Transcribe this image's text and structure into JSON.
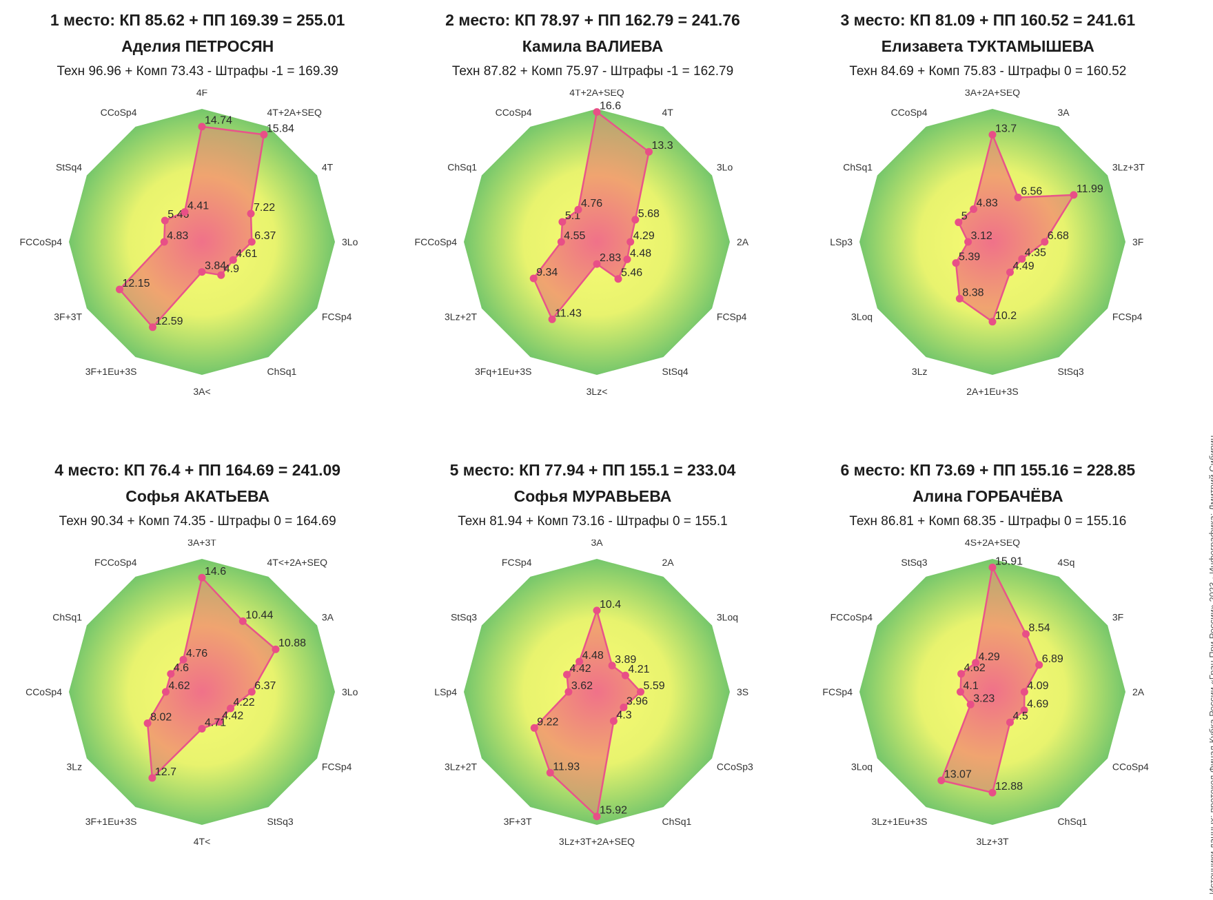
{
  "colors": {
    "line": "#e8548a",
    "point": "#e84f87",
    "bg_outer": "#74c66b",
    "bg_mid": "#e8f36e",
    "bg_inner": "#f8fb74",
    "fill_center": "#f06a8a",
    "fill_mid": "#f0a070",
    "fill_outer": "#b0a870"
  },
  "credit": "Источники данных: протокол Финал Кубка России «Гран При России» 2023 · Инфографика: Дмитрий Сибирин",
  "chart_data": [
    {
      "type": "radar",
      "title": "1 место: КП 85.62 + ПП 169.39 = 255.01",
      "name": "Аделия ПЕТРОСЯН",
      "formula": "Техн 96.96 + Комп 73.43 - Штрафы -1 = 169.39",
      "rmax": 17,
      "categories": [
        "4F",
        "4T+2A+SEQ",
        "4T",
        "3Lo",
        "FCSp4",
        "ChSq1",
        "3A<",
        "3F+1Eu+3S",
        "3F+3T",
        "FCCoSp4",
        "StSq4",
        "CCoSp4"
      ],
      "values": [
        14.74,
        15.84,
        7.22,
        6.37,
        4.61,
        4.9,
        3.84,
        12.59,
        12.15,
        4.83,
        5.46,
        4.41
      ]
    },
    {
      "type": "radar",
      "title": "2 место: КП 78.97 + ПП 162.79 = 241.76",
      "name": "Камила ВАЛИЕВА",
      "formula": "Техн 87.82 + Комп 75.97 - Штрафы -1 = 162.79",
      "rmax": 17,
      "categories": [
        "4T+2A+SEQ",
        "4T",
        "3Lo",
        "2A",
        "FCSp4",
        "StSq4",
        "3Lz<",
        "3Fq+1Eu+3S",
        "3Lz+2T",
        "FCCoSp4",
        "ChSq1",
        "CCoSp4"
      ],
      "values": [
        16.6,
        13.3,
        5.68,
        4.29,
        4.48,
        5.46,
        2.83,
        11.43,
        9.34,
        4.55,
        5.1,
        4.76
      ]
    },
    {
      "type": "radar",
      "title": "3 место: КП 81.09 + ПП 160.52 = 241.61",
      "name": "Елизавета ТУКТАМЫШЕВА",
      "formula": "Техн 84.69 + Комп 75.83 - Штрафы 0 = 160.52",
      "rmax": 17,
      "categories": [
        "3A+2A+SEQ",
        "3A",
        "3Lz+3T",
        "3F",
        "FCSp4",
        "StSq3",
        "2A+1Eu+3S",
        "3Lz",
        "3Loq",
        "LSp3",
        "ChSq1",
        "CCoSp4"
      ],
      "values": [
        13.7,
        6.56,
        11.99,
        6.68,
        4.35,
        4.49,
        10.2,
        8.38,
        5.39,
        3.12,
        5.0,
        4.83
      ]
    },
    {
      "type": "radar",
      "title": "4 место: КП 76.4 + ПП 164.69 = 241.09",
      "name": "Софья АКАТЬЕВА",
      "formula": "Техн 90.34 + Комп 74.35 - Штрафы 0 = 164.69",
      "rmax": 17,
      "categories": [
        "3A+3T",
        "4T<+2A+SEQ",
        "3A",
        "3Lo",
        "FCSp4",
        "StSq3",
        "4T<",
        "3F+1Eu+3S",
        "3Lz",
        "CCoSp4",
        "ChSq1",
        "FCCoSp4"
      ],
      "values": [
        14.6,
        10.44,
        10.88,
        6.37,
        4.22,
        4.42,
        4.71,
        12.7,
        8.02,
        4.62,
        4.6,
        4.76
      ]
    },
    {
      "type": "radar",
      "title": "5 место: КП 77.94 + ПП 155.1 = 233.04",
      "name": "Софья МУРАВЬЕВА",
      "formula": "Техн 81.94 + Комп 73.16 - Штрафы 0 = 155.1",
      "rmax": 17,
      "categories": [
        "3A",
        "2A",
        "3Loq",
        "3S",
        "CCoSp3",
        "ChSq1",
        "3Lz+3T+2A+SEQ",
        "3F+3T",
        "3Lz+2T",
        "LSp4",
        "StSq3",
        "FCSp4"
      ],
      "values": [
        10.4,
        3.89,
        4.21,
        5.59,
        3.96,
        4.3,
        15.92,
        11.93,
        9.22,
        3.62,
        4.42,
        4.48
      ]
    },
    {
      "type": "radar",
      "title": "6 место: КП 73.69 + ПП 155.16 = 228.85",
      "name": "Алина ГОРБАЧЁВА",
      "formula": "Техн 86.81 + Комп 68.35 - Штрафы 0 = 155.16",
      "rmax": 17,
      "categories": [
        "4S+2A+SEQ",
        "4Sq",
        "3F",
        "2A",
        "CCoSp4",
        "ChSq1",
        "3Lz+3T",
        "3Lz+1Eu+3S",
        "3Loq",
        "FCSp4",
        "FCCoSp4",
        "StSq3"
      ],
      "values": [
        15.91,
        8.54,
        6.89,
        4.09,
        4.69,
        4.5,
        12.88,
        13.07,
        3.23,
        4.1,
        4.62,
        4.29
      ]
    }
  ]
}
